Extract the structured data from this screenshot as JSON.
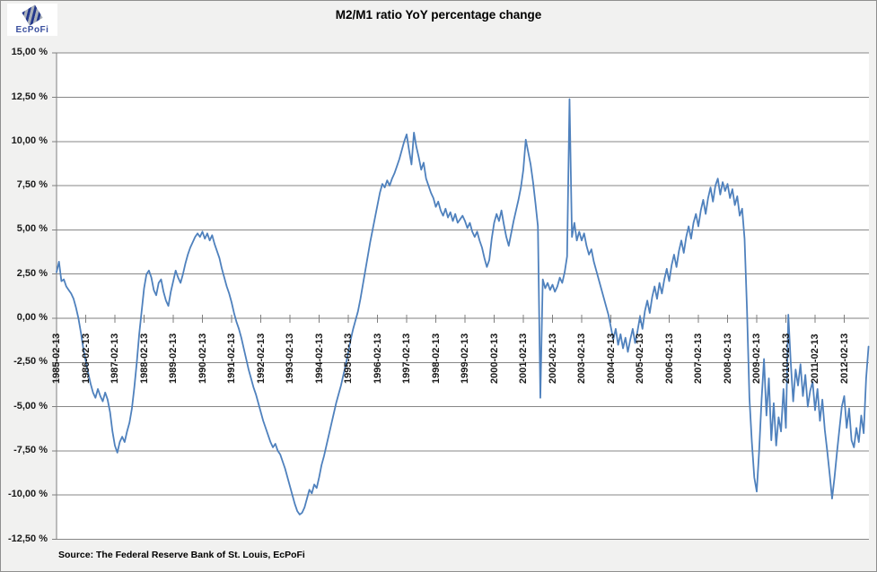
{
  "logo": {
    "text": "EcPoFi"
  },
  "source_note": "Source: The Federal Reserve Bank of St. Louis, EcPoFi",
  "chart_data": {
    "type": "line",
    "title": "M2/M1 ratio YoY percentage change",
    "series_name": "M2/M1 ratio YoY percentage change",
    "x_start": {
      "year": 1985,
      "month": 2
    },
    "x_interval": "monthly",
    "x_tick_labels": [
      "1985-02-13",
      "1986-02-13",
      "1987-02-13",
      "1988-02-13",
      "1989-02-13",
      "1990-02-13",
      "1991-02-13",
      "1992-02-13",
      "1993-02-13",
      "1994-02-13",
      "1995-02-13",
      "1996-02-13",
      "1997-02-13",
      "1998-02-13",
      "1999-02-13",
      "2000-02-13",
      "2001-02-13",
      "2002-02-13",
      "2003-02-13",
      "2004-02-13",
      "2005-02-13",
      "2006-02-13",
      "2007-02-13",
      "2008-02-13",
      "2009-02-13",
      "2010-02-13",
      "2011-02-13",
      "2012-02-13"
    ],
    "y_tick_labels": [
      "15,00 %",
      "12,50 %",
      "10,00 %",
      "7,50 %",
      "5,00 %",
      "2,50 %",
      "0,00 %",
      "-2,50 %",
      "-5,00 %",
      "-7,50 %",
      "-10,00 %",
      "-12,50 %"
    ],
    "ylim": [
      -12.5,
      15
    ],
    "y_tick_step": 2.5,
    "grid": true,
    "legend": "none",
    "line_color": "#4F81BD",
    "grid_color": "#878787",
    "axis_color": "#7f7f7f",
    "plot_bg": "#ffffff",
    "chart_bg": "#f1f1f0",
    "values_by_year": {
      "1985": [
        2.6,
        3.2,
        2.1,
        2.2,
        1.8,
        1.6,
        1.4,
        1.1,
        0.6,
        0.0,
        -0.8
      ],
      "1986": [
        -1.7,
        -2.4,
        -3.1,
        -3.7,
        -4.2,
        -4.5,
        -4.0,
        -4.4,
        -4.7,
        -4.2,
        -4.6,
        -5.3
      ],
      "1987": [
        -6.4,
        -7.2,
        -7.6,
        -7.0,
        -6.7,
        -7.0,
        -6.4,
        -5.9,
        -5.1,
        -3.9,
        -2.5,
        -0.9
      ],
      "1988": [
        0.4,
        1.7,
        2.5,
        2.7,
        2.3,
        1.6,
        1.3,
        2.0,
        2.2,
        1.5,
        1.0,
        0.7
      ],
      "1989": [
        1.5,
        2.1,
        2.7,
        2.3,
        2.0,
        2.5,
        3.1,
        3.6,
        4.0,
        4.3,
        4.6,
        4.8
      ],
      "1990": [
        4.6,
        4.9,
        4.5,
        4.8,
        4.4,
        4.7,
        4.2,
        3.8,
        3.4,
        2.8,
        2.3,
        1.8
      ],
      "1991": [
        1.4,
        0.9,
        0.3,
        -0.2,
        -0.6,
        -1.1,
        -1.7,
        -2.3,
        -2.9,
        -3.4,
        -3.9,
        -4.3
      ],
      "1992": [
        -4.8,
        -5.3,
        -5.8,
        -6.2,
        -6.6,
        -7.0,
        -7.3,
        -7.1,
        -7.5,
        -7.7,
        -8.1,
        -8.5
      ],
      "1993": [
        -9.0,
        -9.5,
        -10.0,
        -10.5,
        -10.9,
        -11.1,
        -11.0,
        -10.7,
        -10.2,
        -9.7,
        -9.9,
        -9.4
      ],
      "1994": [
        -9.6,
        -9.0,
        -8.3,
        -7.8,
        -7.2,
        -6.6,
        -6.0,
        -5.4,
        -4.8,
        -4.3,
        -3.8,
        -3.2
      ],
      "1995": [
        -2.6,
        -1.9,
        -1.2,
        -0.6,
        -0.1,
        0.4,
        1.1,
        1.9,
        2.7,
        3.5,
        4.3,
        5.0
      ],
      "1996": [
        5.7,
        6.4,
        7.1,
        7.6,
        7.4,
        7.8,
        7.5,
        7.9,
        8.2,
        8.6,
        9.0,
        9.5
      ],
      "1997": [
        10.0,
        10.4,
        9.5,
        8.7,
        10.5,
        9.7,
        9.1,
        8.4,
        8.8,
        7.9,
        7.5,
        7.1
      ],
      "1998": [
        6.8,
        6.3,
        6.6,
        6.1,
        5.8,
        6.2,
        5.7,
        6.0,
        5.5,
        5.9,
        5.4,
        5.6
      ],
      "1999": [
        5.8,
        5.5,
        5.1,
        5.4,
        4.9,
        4.6,
        4.9,
        4.4,
        4.0,
        3.4,
        2.9,
        3.3
      ],
      "2000": [
        4.5,
        5.4,
        5.9,
        5.5,
        6.1,
        5.3,
        4.6,
        4.1,
        4.8,
        5.5,
        6.1,
        6.7
      ],
      "2001": [
        7.4,
        8.4,
        10.1,
        9.4,
        8.7,
        7.7,
        6.5,
        5.2,
        -4.5,
        2.2,
        1.7,
        2.0
      ],
      "2002": [
        1.6,
        1.9,
        1.5,
        1.8,
        2.3,
        2.0,
        2.6,
        3.5,
        12.4,
        4.6,
        5.4,
        4.4
      ],
      "2003": [
        4.9,
        4.4,
        4.8,
        4.1,
        3.6,
        3.9,
        3.2,
        2.7,
        2.2,
        1.7,
        1.2,
        0.7
      ],
      "2004": [
        0.2,
        -0.5,
        -1.2,
        -0.6,
        -1.5,
        -0.9,
        -1.7,
        -1.1,
        -1.9,
        -1.2,
        -0.6,
        -1.4
      ],
      "2005": [
        -0.7,
        0.1,
        -0.6,
        0.4,
        1.0,
        0.3,
        1.2,
        1.8,
        1.1,
        2.0,
        1.4,
        2.2
      ],
      "2006": [
        2.8,
        2.1,
        3.0,
        3.6,
        2.9,
        3.8,
        4.4,
        3.7,
        4.6,
        5.2,
        4.5,
        5.4
      ],
      "2007": [
        5.9,
        5.2,
        6.1,
        6.7,
        5.9,
        6.8,
        7.4,
        6.6,
        7.5,
        7.9,
        7.0,
        7.7
      ],
      "2008": [
        7.2,
        7.6,
        6.8,
        7.3,
        6.4,
        6.9,
        5.8,
        6.2,
        4.5,
        0.5,
        -4.5,
        -7.0
      ],
      "2009": [
        -9.0,
        -9.8,
        -7.5,
        -4.6,
        -2.3,
        -5.5,
        -3.4,
        -6.9,
        -4.8,
        -7.2,
        -5.6,
        -6.4
      ],
      "2010": [
        -4.0,
        -6.2,
        0.2,
        -2.5,
        -4.7,
        -2.9,
        -3.8,
        -2.6,
        -4.4,
        -3.2,
        -5.0,
        -4.1
      ],
      "2011": [
        -3.6,
        -5.2,
        -4.0,
        -5.8,
        -4.6,
        -6.3,
        -7.5,
        -8.8,
        -10.2,
        -9.0,
        -7.6,
        -6.3
      ],
      "2012": [
        -5.0,
        -4.4,
        -6.2,
        -5.1,
        -6.9,
        -7.3,
        -6.2,
        -7.0,
        -5.5,
        -6.5,
        -3.4,
        -1.6
      ]
    }
  }
}
